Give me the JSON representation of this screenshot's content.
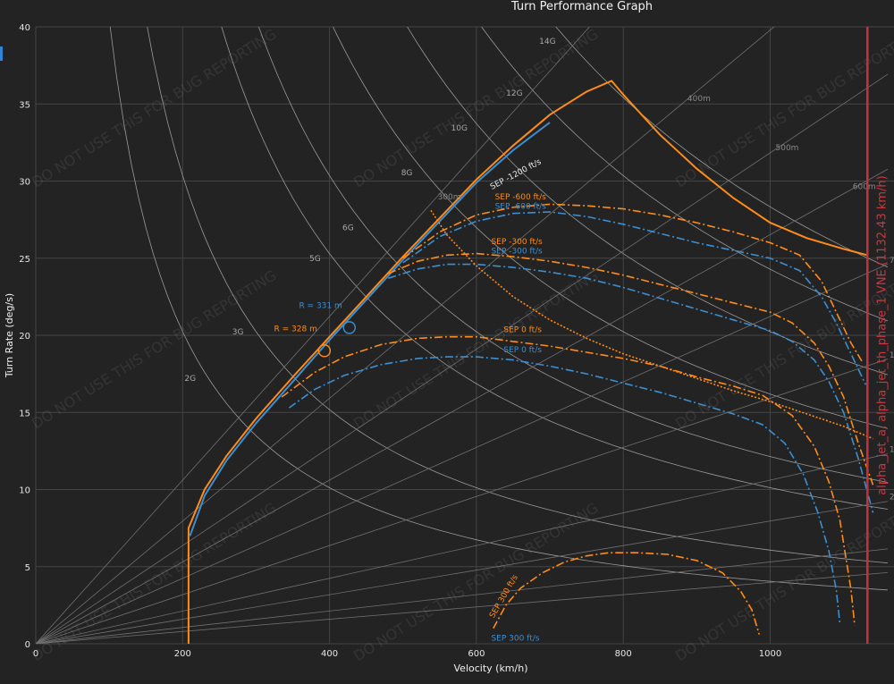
{
  "window": {
    "title": "Turn Performance Graph"
  },
  "colors": {
    "background": "#232323",
    "grid": "#444444",
    "constant_g": "#9a9a9a",
    "constant_r": "#707070",
    "orange": "#ff8c1a",
    "blue": "#3d8fd1",
    "vne": "#c8303c",
    "side_tab": "#2f86d6"
  },
  "watermark_text": "DO NOT USE THIS FOR BUG REPORTING",
  "chart_data": {
    "type": "line",
    "title": "Turn Performance Graph",
    "xlabel": "Velocity (km/h)",
    "ylabel": "Turn Rate (deg/s)",
    "xlim": [
      0,
      1160
    ],
    "ylim": [
      0,
      40
    ],
    "x_ticks": [
      0,
      200,
      400,
      600,
      800,
      1000
    ],
    "y_ticks": [
      0,
      5,
      10,
      15,
      20,
      25,
      30,
      35,
      40
    ],
    "grid": true,
    "constant_g_lines": [
      {
        "label": "2G",
        "g": 2
      },
      {
        "label": "3G",
        "g": 3
      },
      {
        "label": "5G",
        "g": 5
      },
      {
        "label": "6G",
        "g": 6
      },
      {
        "label": "8G",
        "g": 8
      },
      {
        "label": "10G",
        "g": 10
      },
      {
        "label": "12G",
        "g": 12
      },
      {
        "label": "14G",
        "g": 14
      }
    ],
    "constant_radius_lines": [
      {
        "label": "300m",
        "r": 300
      },
      {
        "label": "400m",
        "r": 400
      },
      {
        "label": "500m",
        "r": 500
      },
      {
        "label": "600m",
        "r": 600
      },
      {
        "label": "750m",
        "r": 750
      },
      {
        "label": "1000m",
        "r": 1000
      },
      {
        "label": "1500m",
        "r": 1500
      },
      {
        "label": "2000m",
        "r": 2000
      },
      {
        "label": "",
        "r": 3000
      },
      {
        "label": "",
        "r": 4000
      }
    ],
    "series": [
      {
        "name": "SEP -1200 ft/s",
        "color": "orange",
        "dash": "solid",
        "x": [
          208,
          208,
          230,
          260,
          300,
          350,
          400,
          450,
          500,
          550,
          600,
          650,
          700,
          750,
          784,
          800,
          850,
          900,
          950,
          1000,
          1050,
          1100,
          1132
        ],
        "y": [
          0,
          7.5,
          10.0,
          12.2,
          14.6,
          17.3,
          19.9,
          22.5,
          25.1,
          27.6,
          30.1,
          32.3,
          34.3,
          35.8,
          36.5,
          35.6,
          33.0,
          30.8,
          28.9,
          27.3,
          26.3,
          25.6,
          25.2
        ]
      },
      {
        "name": "SEP -1200 ft/s",
        "color": "blue",
        "dash": "solid",
        "x": [
          210,
          230,
          260,
          300,
          350,
          400,
          450,
          500,
          550,
          600,
          650,
          700
        ],
        "y": [
          7.0,
          9.6,
          11.9,
          14.3,
          17.0,
          19.7,
          22.3,
          24.9,
          27.4,
          29.9,
          32.0,
          33.8
        ]
      },
      {
        "name": "SEP -600 ft/s",
        "color": "orange",
        "dash": "dashdot",
        "x": [
          500,
          550,
          600,
          650,
          700,
          750,
          800,
          850,
          900,
          950,
          1000,
          1040,
          1070,
          1090,
          1110,
          1125
        ],
        "y": [
          25.0,
          26.7,
          27.8,
          28.3,
          28.5,
          28.4,
          28.2,
          27.8,
          27.3,
          26.7,
          26.0,
          25.2,
          23.5,
          21.5,
          19.5,
          18.3
        ]
      },
      {
        "name": "SEP -600 ft/s",
        "color": "blue",
        "dash": "dashdot",
        "x": [
          500,
          550,
          600,
          650,
          700,
          750,
          800,
          850,
          900,
          950,
          1000,
          1040,
          1070,
          1090,
          1110,
          1130
        ],
        "y": [
          24.7,
          26.4,
          27.4,
          27.9,
          28.0,
          27.7,
          27.2,
          26.6,
          26.0,
          25.5,
          25.0,
          24.2,
          22.5,
          20.8,
          18.8,
          16.8
        ]
      },
      {
        "name": "SEP -300 ft/s",
        "color": "orange",
        "dash": "dashdot",
        "x": [
          480,
          520,
          560,
          600,
          650,
          700,
          750,
          800,
          850,
          900,
          950,
          1000,
          1030,
          1060,
          1080,
          1100,
          1120,
          1140
        ],
        "y": [
          24.0,
          24.8,
          25.2,
          25.3,
          25.1,
          24.8,
          24.4,
          23.9,
          23.3,
          22.7,
          22.1,
          21.5,
          20.8,
          19.5,
          18.0,
          16.0,
          13.0,
          10.3
        ]
      },
      {
        "name": "SEP -300 ft/s",
        "color": "blue",
        "dash": "dashdot",
        "x": [
          480,
          520,
          560,
          600,
          650,
          700,
          750,
          800,
          850,
          900,
          950,
          1000,
          1030,
          1060,
          1080,
          1100,
          1120,
          1140
        ],
        "y": [
          23.7,
          24.3,
          24.6,
          24.6,
          24.4,
          24.1,
          23.7,
          23.1,
          22.4,
          21.7,
          21.0,
          20.3,
          19.6,
          18.4,
          17.0,
          15.0,
          12.0,
          8.5
        ]
      },
      {
        "name": "SEP 0 ft/s",
        "color": "orange",
        "dash": "dashdot",
        "x": [
          335,
          380,
          420,
          470,
          520,
          560,
          600,
          650,
          700,
          750,
          800,
          850,
          900,
          950,
          990,
          1030,
          1060,
          1080,
          1095,
          1110,
          1115
        ],
        "y": [
          16.0,
          17.6,
          18.6,
          19.4,
          19.8,
          19.9,
          19.9,
          19.6,
          19.3,
          18.9,
          18.5,
          18.0,
          17.3,
          16.7,
          16.1,
          14.8,
          12.8,
          10.5,
          8.0,
          3.5,
          1.2
        ]
      },
      {
        "name": "SEP 0 ft/s",
        "color": "blue",
        "dash": "dashdot",
        "x": [
          345,
          380,
          420,
          470,
          520,
          560,
          600,
          650,
          700,
          750,
          800,
          850,
          900,
          950,
          990,
          1020,
          1045,
          1065,
          1080,
          1090,
          1095
        ],
        "y": [
          15.3,
          16.5,
          17.4,
          18.1,
          18.5,
          18.6,
          18.6,
          18.4,
          18.0,
          17.5,
          16.9,
          16.3,
          15.6,
          14.9,
          14.2,
          13.0,
          11.0,
          8.5,
          6.0,
          3.5,
          1.3
        ]
      },
      {
        "name": "SEP 300 ft/s",
        "color": "orange",
        "dash": "dashdot",
        "x": [
          623,
          640,
          660,
          690,
          720,
          750,
          780,
          820,
          860,
          900,
          935,
          960,
          975,
          985
        ],
        "y": [
          1.0,
          2.5,
          3.6,
          4.6,
          5.3,
          5.7,
          5.9,
          5.9,
          5.8,
          5.4,
          4.6,
          3.4,
          2.2,
          0.6
        ]
      },
      {
        "name": "",
        "color": "orange",
        "dash": "dotted",
        "x": [
          538,
          560,
          600,
          650,
          700,
          750,
          800,
          850,
          900,
          950,
          1000,
          1050,
          1100,
          1140
        ],
        "y": [
          28.1,
          26.5,
          24.5,
          22.5,
          21.0,
          19.8,
          18.8,
          18.0,
          17.2,
          16.4,
          15.7,
          14.9,
          14.1,
          13.3
        ]
      }
    ],
    "annotations": {
      "sep_labels": [
        {
          "text": "SEP -1200 ft/s",
          "color": "white",
          "x": 655,
          "y": 30.3
        },
        {
          "text": "SEP -600 ft/s",
          "color": "orange",
          "x": 660,
          "y": 28.8
        },
        {
          "text": "SEP -600 ft/s",
          "color": "blue",
          "x": 660,
          "y": 28.2
        },
        {
          "text": "SEP -300 ft/s",
          "color": "orange",
          "x": 655,
          "y": 25.9
        },
        {
          "text": "SEP -300 ft/s",
          "color": "blue",
          "x": 655,
          "y": 25.3
        },
        {
          "text": "SEP 0 ft/s",
          "color": "orange",
          "x": 663,
          "y": 20.2
        },
        {
          "text": "SEP 0 ft/s",
          "color": "blue",
          "x": 663,
          "y": 18.9
        },
        {
          "text": "SEP 300 ft/s",
          "color": "orange",
          "x": 640,
          "y": 3.0
        },
        {
          "text": "SEP 300 ft/s",
          "color": "blue",
          "x": 653,
          "y": 0.2
        }
      ],
      "markers": [
        {
          "text": "R = 328 m",
          "color": "orange",
          "x": 393,
          "y": 19.0
        },
        {
          "text": "R = 331 m",
          "color": "blue",
          "x": 427,
          "y": 20.5
        }
      ],
      "vne": {
        "text": "alpha_jet_a, alpha_jet_th_phase_1 VNE (1132.43 km/h)",
        "x": 1132.43
      }
    }
  }
}
